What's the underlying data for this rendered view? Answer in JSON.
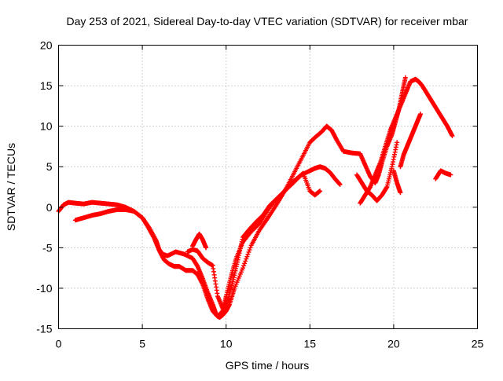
{
  "chart_data": {
    "type": "scatter",
    "title": "Day 253 of 2021, Sidereal Day-to-day VTEC variation (SDTVAR) for receiver mbar",
    "xlabel": "GPS time / hours",
    "ylabel": "SDTVAR / TECUs",
    "xlim": [
      0,
      25
    ],
    "ylim": [
      -15,
      20
    ],
    "xticks": [
      0,
      5,
      10,
      15,
      20,
      25
    ],
    "yticks": [
      -15,
      -10,
      -5,
      0,
      5,
      10,
      15,
      20
    ],
    "xtick_labels": [
      "0",
      "5",
      "10",
      "15",
      "20",
      "25"
    ],
    "ytick_labels": [
      "-15",
      "-10",
      "-5",
      "0",
      "5",
      "10",
      "15",
      "20"
    ],
    "grid": true,
    "legend": "none",
    "marker": "plus",
    "color": "#ff0000",
    "series": [
      {
        "x": [
          0.0,
          0.3,
          0.6,
          1.0,
          1.5,
          2.0,
          2.5,
          3.0,
          3.5,
          4.0,
          4.5,
          5.0,
          5.4,
          5.8,
          6.0,
          6.2,
          6.5,
          7.0,
          7.5,
          8.0,
          8.3,
          8.6,
          8.9,
          9.2,
          9.4,
          9.6,
          9.8,
          10.0,
          10.2,
          10.5,
          11.0,
          11.5,
          12.0,
          12.5,
          13.0,
          13.5,
          14.0,
          14.5,
          15.0,
          15.3,
          15.7,
          16.0,
          16.3,
          16.6,
          17.0,
          17.5,
          18.0,
          18.3,
          18.6,
          18.9,
          19.1,
          19.3,
          19.6,
          19.9,
          20.1,
          20.3,
          20.5,
          20.7
        ],
        "y": [
          -0.5,
          0.3,
          0.6,
          0.5,
          0.4,
          0.6,
          0.5,
          0.4,
          0.3,
          0.0,
          -0.5,
          -1.3,
          -2.5,
          -4.0,
          -5.2,
          -5.8,
          -6.0,
          -5.5,
          -5.8,
          -6.3,
          -7.3,
          -8.8,
          -10.5,
          -12.0,
          -13.2,
          -13.6,
          -13.3,
          -12.8,
          -12.0,
          -10.0,
          -7.5,
          -4.7,
          -2.8,
          -1.3,
          0.3,
          2.0,
          4.0,
          6.0,
          8.0,
          8.6,
          9.3,
          10.0,
          9.5,
          8.3,
          6.9,
          6.7,
          6.6,
          5.2,
          3.8,
          3.0,
          4.0,
          5.5,
          7.5,
          9.0,
          10.5,
          12.0,
          14.0,
          16.0
        ]
      },
      {
        "x": [
          1.0,
          1.5,
          2.0,
          2.5,
          3.0,
          3.5,
          4.0,
          4.5,
          5.0,
          5.3,
          5.7,
          6.0,
          6.3,
          6.6,
          6.9,
          7.2,
          7.6,
          8.0,
          8.3,
          8.6,
          8.9,
          9.2,
          9.5,
          9.8,
          10.0,
          10.3,
          10.6,
          11.0,
          11.5,
          12.0,
          12.5,
          13.0,
          13.5,
          14.0,
          14.5,
          15.0,
          15.3,
          15.6,
          15.9,
          16.2,
          16.5,
          16.8
        ],
        "y": [
          -1.6,
          -1.3,
          -1.0,
          -0.8,
          -0.5,
          -0.3,
          -0.3,
          -0.5,
          -1.3,
          -2.3,
          -3.8,
          -5.3,
          -6.5,
          -7.0,
          -7.3,
          -7.3,
          -7.8,
          -7.8,
          -8.3,
          -9.5,
          -11.3,
          -12.8,
          -13.5,
          -12.8,
          -11.0,
          -8.5,
          -6.3,
          -4.3,
          -3.0,
          -2.0,
          -0.3,
          1.0,
          2.0,
          3.0,
          4.0,
          4.5,
          4.8,
          5.0,
          4.8,
          4.3,
          3.5,
          2.8
        ]
      },
      {
        "x": [
          7.7,
          8.0,
          8.3,
          8.6,
          8.9,
          9.2,
          9.5,
          9.8,
          10.1,
          10.4,
          10.7,
          11.0,
          11.4,
          11.8,
          12.2,
          12.6,
          13.0,
          13.4,
          13.8,
          14.2,
          14.6,
          15.0,
          15.3,
          15.6
        ],
        "y": [
          -5.5,
          -5.2,
          -5.4,
          -6.3,
          -6.8,
          -7.2,
          -11.0,
          -12.5,
          -11.5,
          -9.2,
          -6.5,
          -3.7,
          -2.7,
          -1.8,
          -1.0,
          0.2,
          1.0,
          1.8,
          2.8,
          3.5,
          4.2,
          2.0,
          1.5,
          2.0
        ]
      },
      {
        "x": [
          8.0,
          8.2,
          8.4,
          8.6,
          8.8
        ],
        "y": [
          -4.8,
          -4.0,
          -3.3,
          -4.0,
          -5.0
        ]
      },
      {
        "x": [
          18.0,
          18.3,
          18.6,
          18.9,
          19.2,
          19.5,
          19.8,
          20.1,
          20.4,
          20.7,
          21.0,
          21.3,
          21.5,
          21.7,
          22.0,
          22.3,
          22.6,
          22.9,
          23.2,
          23.5
        ],
        "y": [
          0.5,
          1.5,
          2.5,
          4.0,
          5.5,
          7.5,
          9.5,
          11.0,
          12.5,
          14.0,
          15.5,
          15.8,
          15.5,
          15.0,
          14.0,
          13.0,
          12.0,
          11.0,
          10.0,
          8.8
        ]
      },
      {
        "x": [
          17.8,
          18.1,
          18.4,
          18.7,
          19.0,
          19.3,
          19.6,
          19.9,
          20.2
        ],
        "y": [
          4.0,
          3.0,
          2.0,
          1.5,
          0.8,
          1.5,
          2.5,
          5.0,
          8.0
        ]
      },
      {
        "x": [
          20.0,
          20.2,
          20.4
        ],
        "y": [
          4.5,
          3.0,
          1.8
        ]
      },
      {
        "x": [
          20.4,
          20.6,
          20.8,
          21.0,
          21.2,
          21.4,
          21.6
        ],
        "y": [
          5.0,
          6.5,
          7.5,
          8.5,
          9.5,
          10.5,
          11.5
        ]
      },
      {
        "x": [
          22.5,
          22.8,
          23.1,
          23.4
        ],
        "y": [
          3.5,
          4.5,
          4.2,
          4.0
        ]
      }
    ]
  }
}
